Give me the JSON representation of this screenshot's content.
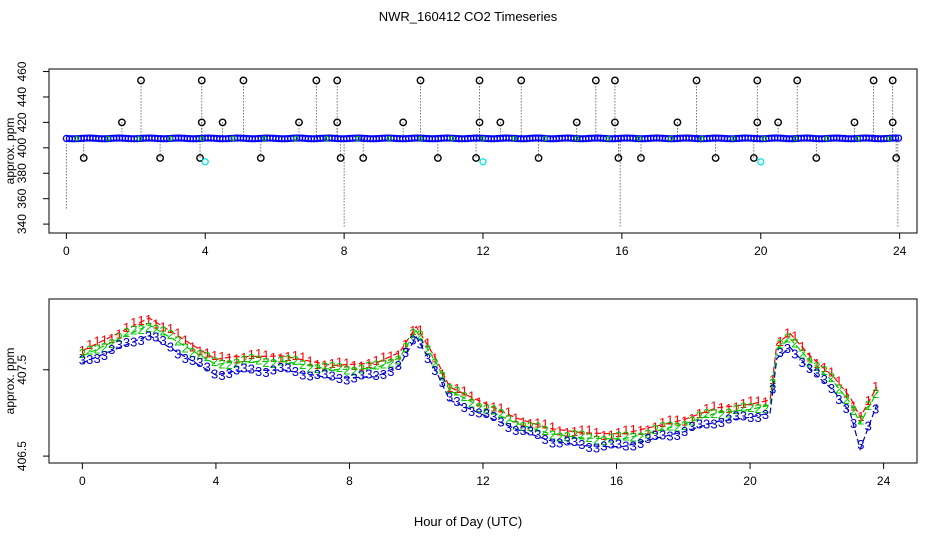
{
  "page_title": "NWR_160412  CO2 Timeseries",
  "x_axis_label": "Hour of Day (UTC)",
  "colors": {
    "top_points": "#0000ff",
    "top_outliers": "#000000",
    "top_cyan": "#00e5e5",
    "series1": "#ff0000",
    "series2": "#00cc00",
    "series3": "#0000cc"
  },
  "chart_data": [
    {
      "type": "scatter",
      "title": "NWR_160412  CO2 Timeseries",
      "xlabel": "",
      "ylabel": "approx. ppm",
      "xlim": [
        -0.5,
        24.5
      ],
      "ylim": [
        333,
        462
      ],
      "x_ticks": [
        0,
        4,
        8,
        12,
        16,
        20,
        24
      ],
      "y_ticks": [
        340,
        360,
        380,
        400,
        420,
        440,
        460
      ],
      "baseline_ppm": 407.4,
      "outliers": [
        {
          "x": 0.5,
          "y": 392
        },
        {
          "x": 1.6,
          "y": 420
        },
        {
          "x": 2.15,
          "y": 453
        },
        {
          "x": 2.7,
          "y": 392
        },
        {
          "x": 3.85,
          "y": 392
        },
        {
          "x": 3.9,
          "y": 420
        },
        {
          "x": 3.9,
          "y": 453
        },
        {
          "x": 4.5,
          "y": 420
        },
        {
          "x": 5.1,
          "y": 453
        },
        {
          "x": 5.6,
          "y": 392
        },
        {
          "x": 6.7,
          "y": 420
        },
        {
          "x": 7.2,
          "y": 453
        },
        {
          "x": 7.8,
          "y": 453
        },
        {
          "x": 7.8,
          "y": 420
        },
        {
          "x": 7.9,
          "y": 392
        },
        {
          "x": 8.55,
          "y": 392
        },
        {
          "x": 9.7,
          "y": 420
        },
        {
          "x": 10.2,
          "y": 453
        },
        {
          "x": 10.7,
          "y": 392
        },
        {
          "x": 11.8,
          "y": 392
        },
        {
          "x": 11.9,
          "y": 420
        },
        {
          "x": 11.9,
          "y": 453
        },
        {
          "x": 12.5,
          "y": 420
        },
        {
          "x": 13.1,
          "y": 453
        },
        {
          "x": 13.6,
          "y": 392
        },
        {
          "x": 14.7,
          "y": 420
        },
        {
          "x": 15.25,
          "y": 453
        },
        {
          "x": 15.8,
          "y": 453
        },
        {
          "x": 15.8,
          "y": 420
        },
        {
          "x": 15.9,
          "y": 392
        },
        {
          "x": 16.55,
          "y": 392
        },
        {
          "x": 17.6,
          "y": 420
        },
        {
          "x": 18.15,
          "y": 453
        },
        {
          "x": 18.7,
          "y": 392
        },
        {
          "x": 19.8,
          "y": 392
        },
        {
          "x": 19.9,
          "y": 420
        },
        {
          "x": 19.9,
          "y": 453
        },
        {
          "x": 20.5,
          "y": 420
        },
        {
          "x": 21.05,
          "y": 453
        },
        {
          "x": 21.6,
          "y": 392
        },
        {
          "x": 22.7,
          "y": 420
        },
        {
          "x": 23.25,
          "y": 453
        },
        {
          "x": 23.8,
          "y": 453
        },
        {
          "x": 23.8,
          "y": 420
        },
        {
          "x": 23.9,
          "y": 392
        }
      ],
      "cyan_points": [
        {
          "x": 4.0,
          "y": 389
        },
        {
          "x": 12.0,
          "y": 389
        },
        {
          "x": 20.0,
          "y": 389
        }
      ],
      "drop_lines": [
        {
          "x": 0.0,
          "y": 351
        },
        {
          "x": 8.0,
          "y": 337
        },
        {
          "x": 15.95,
          "y": 337
        },
        {
          "x": 23.95,
          "y": 338
        }
      ]
    },
    {
      "type": "line",
      "title": "",
      "xlabel": "Hour of Day (UTC)",
      "ylabel": "approx. ppm",
      "xlim": [
        -1.0,
        25.0
      ],
      "ylim": [
        406.42,
        408.32
      ],
      "x_ticks": [
        0,
        4,
        8,
        12,
        16,
        20,
        24
      ],
      "y_ticks": [
        406.5,
        407.5
      ],
      "x": [
        0,
        2,
        4,
        4.5,
        6,
        7.5,
        8.8,
        9.5,
        10,
        10.6,
        11,
        12,
        13,
        14,
        15,
        15.8,
        16.2,
        17,
        18,
        19,
        20,
        20.6,
        20.8,
        21.2,
        21.8,
        22.5,
        23,
        23.3,
        23.8
      ],
      "series": [
        {
          "name": "1",
          "marker": "1",
          "values": [
            407.72,
            408.1,
            407.62,
            407.65,
            407.66,
            407.55,
            407.58,
            407.7,
            408.0,
            407.62,
            407.3,
            407.12,
            406.94,
            406.82,
            406.77,
            406.76,
            406.76,
            406.83,
            406.92,
            407.06,
            407.1,
            407.15,
            407.8,
            407.92,
            407.66,
            407.42,
            407.18,
            406.95,
            407.3
          ]
        },
        {
          "name": "2",
          "marker": "2",
          "values": [
            407.66,
            408.02,
            407.56,
            407.59,
            407.6,
            407.5,
            407.52,
            407.64,
            407.95,
            407.58,
            407.26,
            407.06,
            406.88,
            406.76,
            406.71,
            406.7,
            406.7,
            406.77,
            406.87,
            407.0,
            407.04,
            407.09,
            407.74,
            407.86,
            407.6,
            407.36,
            407.12,
            406.88,
            407.24
          ]
        },
        {
          "name": "3",
          "marker": "3",
          "values": [
            407.58,
            407.9,
            407.44,
            407.48,
            407.5,
            407.4,
            407.42,
            407.55,
            407.88,
            407.48,
            407.15,
            406.98,
            406.81,
            406.68,
            406.62,
            406.61,
            406.61,
            406.69,
            406.78,
            406.9,
            406.95,
            407.0,
            407.63,
            407.76,
            407.5,
            407.26,
            407.0,
            406.58,
            407.1
          ]
        }
      ]
    }
  ]
}
